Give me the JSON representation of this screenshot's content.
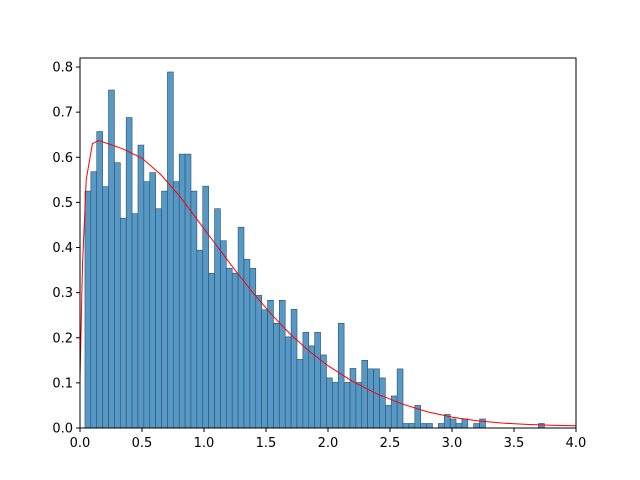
{
  "chart_data": {
    "type": "bar",
    "subtype": "histogram-with-density-curve",
    "title": "",
    "xlabel": "",
    "ylabel": "",
    "xlim": [
      0.0,
      4.0
    ],
    "ylim": [
      0.0,
      0.82
    ],
    "grid": false,
    "legend": "none",
    "bin_width": 0.0475,
    "bins_start": 0.04,
    "bin_heights": [
      0.525,
      0.568,
      0.657,
      0.535,
      0.749,
      0.588,
      0.465,
      0.688,
      0.475,
      0.627,
      0.546,
      0.566,
      0.486,
      0.525,
      0.789,
      0.546,
      0.607,
      0.607,
      0.525,
      0.394,
      0.536,
      0.343,
      0.486,
      0.415,
      0.354,
      0.343,
      0.445,
      0.374,
      0.354,
      0.294,
      0.262,
      0.283,
      0.232,
      0.283,
      0.202,
      0.263,
      0.152,
      0.212,
      0.182,
      0.212,
      0.162,
      0.111,
      0.101,
      0.232,
      0.101,
      0.132,
      0.101,
      0.15,
      0.131,
      0.131,
      0.111,
      0.05,
      0.071,
      0.131,
      0.01,
      0.01,
      0.05,
      0.01,
      0.01,
      0.0,
      0.01,
      0.03,
      0.02,
      0.01,
      0.02,
      0.0,
      0.01,
      0.02,
      0.0,
      0.0,
      0.0,
      0.0,
      0.0,
      0.0,
      0.0,
      0.0,
      0.0,
      0.01
    ],
    "curve": {
      "color": "#ff0000",
      "x": [
        0.0,
        0.02,
        0.05,
        0.1,
        0.15,
        0.25,
        0.35,
        0.5,
        0.65,
        0.8,
        0.95,
        1.1,
        1.25,
        1.4,
        1.55,
        1.7,
        1.85,
        2.0,
        2.2,
        2.4,
        2.6,
        2.8,
        3.0,
        3.2,
        3.4,
        3.6,
        3.8,
        4.0
      ],
      "y": [
        0.11,
        0.36,
        0.55,
        0.63,
        0.637,
        0.628,
        0.618,
        0.598,
        0.562,
        0.515,
        0.46,
        0.405,
        0.35,
        0.298,
        0.25,
        0.207,
        0.17,
        0.138,
        0.103,
        0.075,
        0.053,
        0.036,
        0.024,
        0.016,
        0.011,
        0.008,
        0.006,
        0.005
      ]
    },
    "bar_color": "#5799c6",
    "bar_edge_color": "#2c4e66",
    "x_ticks": [
      {
        "value": 0.0,
        "label": "0.0"
      },
      {
        "value": 0.5,
        "label": "0.5"
      },
      {
        "value": 1.0,
        "label": "1.0"
      },
      {
        "value": 1.5,
        "label": "1.5"
      },
      {
        "value": 2.0,
        "label": "2.0"
      },
      {
        "value": 2.5,
        "label": "2.5"
      },
      {
        "value": 3.0,
        "label": "3.0"
      },
      {
        "value": 3.5,
        "label": "3.5"
      },
      {
        "value": 4.0,
        "label": "4.0"
      }
    ],
    "y_ticks": [
      {
        "value": 0.0,
        "label": "0.0"
      },
      {
        "value": 0.1,
        "label": "0.1"
      },
      {
        "value": 0.2,
        "label": "0.2"
      },
      {
        "value": 0.3,
        "label": "0.3"
      },
      {
        "value": 0.4,
        "label": "0.4"
      },
      {
        "value": 0.5,
        "label": "0.5"
      },
      {
        "value": 0.6,
        "label": "0.6"
      },
      {
        "value": 0.7,
        "label": "0.7"
      },
      {
        "value": 0.8,
        "label": "0.8"
      }
    ]
  }
}
